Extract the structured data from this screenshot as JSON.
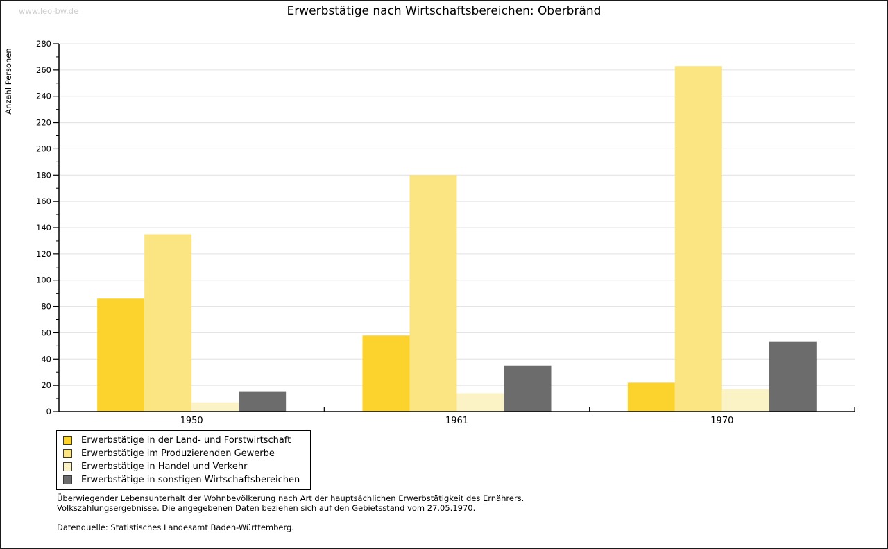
{
  "watermark": "www.leo-bw.de",
  "title": "Erwerbstätige nach Wirtschaftsbereichen: Oberbränd",
  "chart_data": {
    "type": "bar",
    "title": "Erwerbstätige nach Wirtschaftsbereichen: Oberbränd",
    "xlabel": "",
    "ylabel": "Anzahl Personen",
    "categories": [
      "1950",
      "1961",
      "1970"
    ],
    "series": [
      {
        "name": "Erwerbstätige in der Land- und Forstwirtschaft",
        "color": "#FCD32D",
        "values": [
          86,
          58,
          22
        ]
      },
      {
        "name": "Erwerbstätige im Produzierenden Gewerbe",
        "color": "#FBE583",
        "values": [
          135,
          180,
          263
        ]
      },
      {
        "name": "Erwerbstätige in Handel und Verkehr",
        "color": "#FBF2C6",
        "values": [
          7,
          14,
          17
        ]
      },
      {
        "name": "Erwerbstätige in sonstigen Wirtschaftsbereichen",
        "color": "#6C6C6C",
        "values": [
          15,
          35,
          53
        ]
      }
    ],
    "ylim": [
      0,
      280
    ],
    "ytick_step": 20,
    "yminor_step": 10,
    "grid": true,
    "grid_color": "#E0E0E0",
    "axis_color": "#000000",
    "legend_position": "bottom-left"
  },
  "notes": {
    "line1": "Überwiegender Lebensunterhalt der Wohnbevölkerung nach Art der hauptsächlichen Erwerbstätigkeit des Ernährers.",
    "line2": "Volkszählungsergebnisse. Die angegebenen Daten beziehen sich auf den Gebietsstand vom 27.05.1970.",
    "source": "Datenquelle: Statistisches Landesamt Baden-Württemberg."
  }
}
